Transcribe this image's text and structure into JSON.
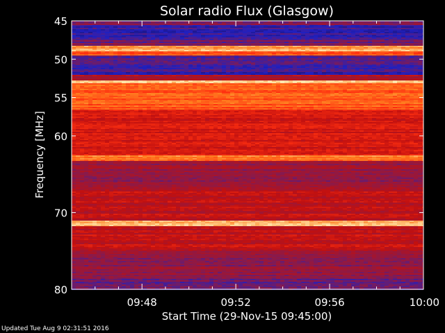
{
  "footer": {
    "updated": "Updated Tue Aug  9 02:31:51 2016"
  },
  "chart_data": {
    "type": "heatmap",
    "title": "Solar radio Flux (Glasgow)",
    "xlabel": "Start Time (29-Nov-15 09:45:00)",
    "ylabel": "Frequency [MHz]",
    "x_unit": "minutes after 09:45",
    "xlim": [
      0,
      15
    ],
    "ylim": [
      45,
      80
    ],
    "x_ticks": [
      {
        "value": 3,
        "label": "09:48"
      },
      {
        "value": 7,
        "label": "09:52"
      },
      {
        "value": 11,
        "label": "09:56"
      },
      {
        "value": 15,
        "label": "10:00"
      }
    ],
    "y_ticks": [
      {
        "value": 45,
        "label": "45"
      },
      {
        "value": 50,
        "label": "50"
      },
      {
        "value": 55,
        "label": "55"
      },
      {
        "value": 60,
        "label": "60"
      },
      {
        "value": 70,
        "label": "70"
      },
      {
        "value": 80,
        "label": "80"
      }
    ],
    "colormap": [
      "#1a0a4a",
      "#2020c0",
      "#8a1a4a",
      "#c01010",
      "#ff3010",
      "#ff8020",
      "#ffe8b0"
    ],
    "band_intensity": [
      {
        "freq": [
          45.0,
          45.5
        ],
        "level": 0.35
      },
      {
        "freq": [
          45.5,
          47.5
        ],
        "level": 0.2
      },
      {
        "freq": [
          47.5,
          48.2
        ],
        "level": 0.3
      },
      {
        "freq": [
          48.2,
          48.5
        ],
        "level": 0.85
      },
      {
        "freq": [
          48.5,
          48.9
        ],
        "level": 0.95
      },
      {
        "freq": [
          48.9,
          49.5
        ],
        "level": 0.75
      },
      {
        "freq": [
          49.5,
          50.5
        ],
        "level": 0.25
      },
      {
        "freq": [
          50.5,
          52.0
        ],
        "level": 0.2
      },
      {
        "freq": [
          52.0,
          52.6
        ],
        "level": 0.45
      },
      {
        "freq": [
          52.6,
          53.0
        ],
        "level": 0.95
      },
      {
        "freq": [
          53.0,
          56.5
        ],
        "level": 0.75
      },
      {
        "freq": [
          56.5,
          62.5
        ],
        "level": 0.55
      },
      {
        "freq": [
          62.5,
          63.2
        ],
        "level": 0.8
      },
      {
        "freq": [
          63.2,
          67.0
        ],
        "level": 0.38
      },
      {
        "freq": [
          67.0,
          71.0
        ],
        "level": 0.48
      },
      {
        "freq": [
          71.0,
          71.6
        ],
        "level": 0.9
      },
      {
        "freq": [
          71.6,
          75.0
        ],
        "level": 0.5
      },
      {
        "freq": [
          75.0,
          78.5
        ],
        "level": 0.36
      },
      {
        "freq": [
          78.5,
          80.0
        ],
        "level": 0.3
      }
    ]
  }
}
